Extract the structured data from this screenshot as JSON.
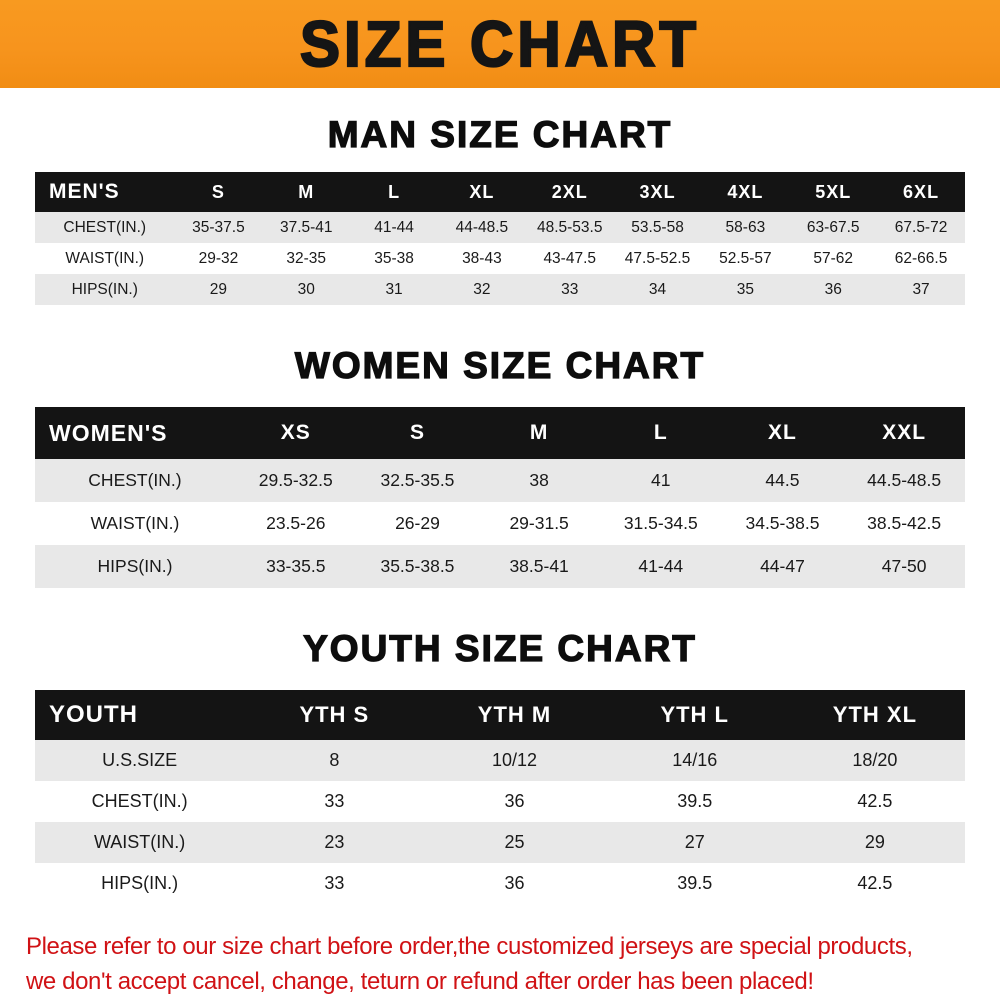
{
  "banner": {
    "title": "SIZE CHART",
    "bg_color": "#F7941D",
    "text_color": "#151515"
  },
  "sections": [
    {
      "title": "MAN SIZE CHART",
      "table": {
        "header": [
          "MEN'S",
          "S",
          "M",
          "L",
          "XL",
          "2XL",
          "3XL",
          "4XL",
          "5XL",
          "6XL"
        ],
        "rows": [
          [
            "CHEST(IN.)",
            "35-37.5",
            "37.5-41",
            "41-44",
            "44-48.5",
            "48.5-53.5",
            "53.5-58",
            "58-63",
            "63-67.5",
            "67.5-72"
          ],
          [
            "WAIST(IN.)",
            "29-32",
            "32-35",
            "35-38",
            "38-43",
            "43-47.5",
            "47.5-52.5",
            "52.5-57",
            "57-62",
            "62-66.5"
          ],
          [
            "HIPS(IN.)",
            "29",
            "30",
            "31",
            "32",
            "33",
            "34",
            "35",
            "36",
            "37"
          ]
        ]
      }
    },
    {
      "title": "WOMEN SIZE CHART",
      "table": {
        "header": [
          "WOMEN'S",
          "XS",
          "S",
          "M",
          "L",
          "XL",
          "XXL"
        ],
        "rows": [
          [
            "CHEST(IN.)",
            "29.5-32.5",
            "32.5-35.5",
            "38",
            "41",
            "44.5",
            "44.5-48.5"
          ],
          [
            "WAIST(IN.)",
            "23.5-26",
            "26-29",
            "29-31.5",
            "31.5-34.5",
            "34.5-38.5",
            "38.5-42.5"
          ],
          [
            "HIPS(IN.)",
            "33-35.5",
            "35.5-38.5",
            "38.5-41",
            "41-44",
            "44-47",
            "47-50"
          ]
        ]
      }
    },
    {
      "title": "YOUTH SIZE CHART",
      "table": {
        "header": [
          "YOUTH",
          "YTH S",
          "YTH M",
          "YTH L",
          "YTH XL"
        ],
        "rows": [
          [
            "U.S.SIZE",
            "8",
            "10/12",
            "14/16",
            "18/20"
          ],
          [
            "CHEST(IN.)",
            "33",
            "36",
            "39.5",
            "42.5"
          ],
          [
            "WAIST(IN.)",
            "23",
            "25",
            "27",
            "29"
          ],
          [
            "HIPS(IN.)",
            "33",
            "36",
            "39.5",
            "42.5"
          ]
        ]
      }
    }
  ],
  "footer": {
    "line1": "Please refer to our size chart before order,the customized jerseys are special products,",
    "line2": "we don't accept cancel, change, teturn or refund after order has been placed!",
    "text_color": "#D01215"
  }
}
